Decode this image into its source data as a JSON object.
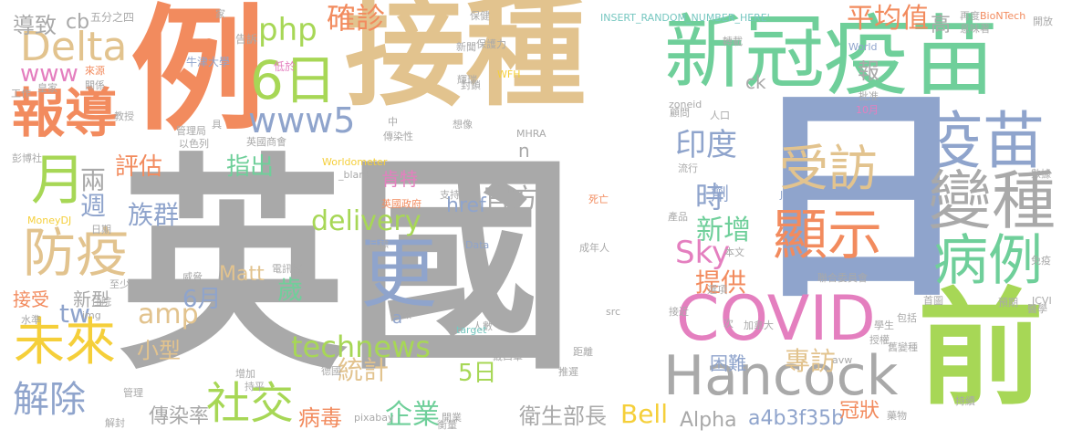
{
  "palette": {
    "red": "#f28b5e",
    "sand": "#e2c38e",
    "green": "#6fcf9a",
    "blue": "#8fa4cc",
    "pink": "#e47fbf",
    "gray": "#a9a9a9",
    "lime": "#a7d756",
    "yellow": "#f5cf3a",
    "teal": "#76c7c0"
  },
  "words": [
    {
      "text": "英國",
      "color": "gray"
    },
    {
      "text": "接種",
      "color": "sand"
    },
    {
      "text": "例",
      "color": "red"
    },
    {
      "text": "日",
      "color": "blue"
    },
    {
      "text": "新冠",
      "color": "green"
    },
    {
      "text": "疫苗",
      "color": "green"
    },
    {
      "text": "前",
      "color": "lime"
    },
    {
      "text": "Hancock",
      "color": "gray"
    },
    {
      "text": "COVID",
      "color": "pink"
    },
    {
      "text": "疫苗",
      "color": "blue"
    },
    {
      "text": "變種",
      "color": "gray"
    },
    {
      "text": "病例",
      "color": "green"
    },
    {
      "text": "顯示",
      "color": "red"
    },
    {
      "text": "受訪",
      "color": "sand"
    },
    {
      "text": "報導",
      "color": "red"
    },
    {
      "text": "防疫",
      "color": "sand"
    },
    {
      "text": "未來",
      "color": "yellow"
    },
    {
      "text": "更",
      "color": "blue"
    },
    {
      "text": "6日",
      "color": "lime"
    },
    {
      "text": "Delta",
      "color": "sand"
    },
    {
      "text": "月",
      "color": "lime"
    },
    {
      "text": "解除",
      "color": "blue"
    },
    {
      "text": "社交",
      "color": "lime"
    },
    {
      "text": "Sky",
      "color": "pink"
    },
    {
      "text": "www5",
      "color": "blue"
    },
    {
      "text": "印度",
      "color": "blue"
    },
    {
      "text": "php",
      "color": "lime"
    },
    {
      "text": "確診",
      "color": "red"
    },
    {
      "text": "www",
      "color": "pink"
    },
    {
      "text": "technews",
      "color": "lime"
    },
    {
      "text": "delivery",
      "color": "lime"
    },
    {
      "text": "amp",
      "color": "sand"
    },
    {
      "text": "族群",
      "color": "blue"
    },
    {
      "text": "評估",
      "color": "red"
    },
    {
      "text": "指出",
      "color": "green"
    },
    {
      "text": "平均值",
      "color": "red"
    },
    {
      "text": "時",
      "color": "blue"
    },
    {
      "text": "新增",
      "color": "green"
    },
    {
      "text": "官方",
      "color": "gray"
    },
    {
      "text": "提供",
      "color": "red"
    },
    {
      "text": "歲",
      "color": "green"
    },
    {
      "text": "6月",
      "color": "blue"
    },
    {
      "text": "統計",
      "color": "sand"
    },
    {
      "text": "專訪",
      "color": "sand"
    },
    {
      "text": "企業",
      "color": "green"
    },
    {
      "text": "病毒",
      "color": "red"
    },
    {
      "text": "傳染率",
      "color": "gray"
    },
    {
      "text": "衛生部長",
      "color": "gray"
    },
    {
      "text": "Bell",
      "color": "yellow"
    },
    {
      "text": "Alpha",
      "color": "gray"
    },
    {
      "text": "a4b3f35b",
      "color": "blue"
    },
    {
      "text": "冠狀",
      "color": "red"
    },
    {
      "text": "tw",
      "color": "blue"
    },
    {
      "text": "接受",
      "color": "red"
    },
    {
      "text": "新型",
      "color": "gray"
    },
    {
      "text": "小型",
      "color": "sand"
    },
    {
      "text": "5日",
      "color": "lime"
    },
    {
      "text": "Matt",
      "color": "sand"
    },
    {
      "text": "href",
      "color": "blue"
    },
    {
      "text": "肯特",
      "color": "pink"
    },
    {
      "text": "困難",
      "color": "blue"
    },
    {
      "text": "兩",
      "color": "gray"
    },
    {
      "text": "週",
      "color": "blue"
    },
    {
      "text": "報",
      "color": "gray"
    },
    {
      "text": "劑",
      "color": "blue"
    },
    {
      "text": "導致",
      "color": "gray"
    },
    {
      "text": "cb",
      "color": "gray"
    },
    {
      "text": "高",
      "color": "gray"
    },
    {
      "text": "ck",
      "color": "gray"
    },
    {
      "text": "n",
      "color": "gray"
    },
    {
      "text": "a",
      "color": "blue"
    },
    {
      "text": "五分之四",
      "color": "gray"
    },
    {
      "text": "牛津大學",
      "color": "blue"
    },
    {
      "text": "告訴",
      "color": "gray"
    },
    {
      "text": "低於",
      "color": "pink"
    },
    {
      "text": "INSERT_RANDOM_NUMBER_HERE'",
      "color": "teal"
    },
    {
      "text": "保健",
      "color": "gray"
    },
    {
      "text": "保護力",
      "color": "gray"
    },
    {
      "text": "再度",
      "color": "gray"
    },
    {
      "text": "意味著",
      "color": "gray"
    },
    {
      "text": "BioNTech",
      "color": "red"
    },
    {
      "text": "開放",
      "color": "gray"
    },
    {
      "text": "轉載",
      "color": "gray"
    },
    {
      "text": "World",
      "color": "blue"
    },
    {
      "text": "來源",
      "color": "red"
    },
    {
      "text": "關係",
      "color": "gray"
    },
    {
      "text": "工作",
      "color": "gray"
    },
    {
      "text": "皇家",
      "color": "gray"
    },
    {
      "text": "新聞",
      "color": "gray"
    },
    {
      "text": "WFH",
      "color": "yellow"
    },
    {
      "text": "封鎖",
      "color": "gray"
    },
    {
      "text": "輝瑞",
      "color": "gray"
    },
    {
      "text": "教授",
      "color": "gray"
    },
    {
      "text": "管理局",
      "color": "gray"
    },
    {
      "text": "以色列",
      "color": "gray"
    },
    {
      "text": "具",
      "color": "gray"
    },
    {
      "text": "英國商會",
      "color": "gray"
    },
    {
      "text": "zoneid",
      "color": "gray"
    },
    {
      "text": "人口",
      "color": "gray"
    },
    {
      "text": "顧問",
      "color": "gray"
    },
    {
      "text": "批准",
      "color": "gray"
    },
    {
      "text": "10月",
      "color": "pink"
    },
    {
      "text": "想像",
      "color": "gray"
    },
    {
      "text": "MHRA",
      "color": "gray"
    },
    {
      "text": "傳染性",
      "color": "gray"
    },
    {
      "text": "中",
      "color": "gray"
    },
    {
      "text": "彭博社",
      "color": "gray"
    },
    {
      "text": "Worldometer",
      "color": "yellow"
    },
    {
      "text": "_blank",
      "color": "gray"
    },
    {
      "text": "英國政府",
      "color": "red"
    },
    {
      "text": "支持",
      "color": "gray"
    },
    {
      "text": "死亡",
      "color": "red"
    },
    {
      "text": "流行",
      "color": "gray"
    },
    {
      "text": "John",
      "color": "blue"
    },
    {
      "text": "數據",
      "color": "gray"
    },
    {
      "text": "產品",
      "color": "gray"
    },
    {
      "text": "本文",
      "color": "gray"
    },
    {
      "text": "免疫",
      "color": "gray"
    },
    {
      "text": "聯合委員會",
      "color": "gray"
    },
    {
      "text": "選項",
      "color": "gray"
    },
    {
      "text": "MoneyDJ",
      "color": "yellow"
    },
    {
      "text": "日期",
      "color": "gray"
    },
    {
      "text": "目標",
      "color": "gray"
    },
    {
      "text": "Data",
      "color": "blue"
    },
    {
      "text": "成年人",
      "color": "gray"
    },
    {
      "text": "威脅",
      "color": "gray"
    },
    {
      "text": "電訊報",
      "color": "gray"
    },
    {
      "text": "至少",
      "color": "gray"
    },
    {
      "text": "img",
      "color": "gray"
    },
    {
      "text": "住院",
      "color": "gray"
    },
    {
      "text": "數",
      "color": "gray"
    },
    {
      "text": "src",
      "color": "gray"
    },
    {
      "text": "人數",
      "color": "gray"
    },
    {
      "text": "水準",
      "color": "gray"
    },
    {
      "text": "target",
      "color": "teal"
    },
    {
      "text": "次",
      "color": "gray"
    },
    {
      "text": "加拿大",
      "color": "gray"
    },
    {
      "text": "醫學",
      "color": "gray"
    },
    {
      "text": "JCVI",
      "color": "gray"
    },
    {
      "text": "預期",
      "color": "gray"
    },
    {
      "text": "首圖",
      "color": "gray"
    },
    {
      "text": "接近",
      "color": "gray"
    },
    {
      "text": "授權",
      "color": "gray"
    },
    {
      "text": "學生",
      "color": "gray"
    },
    {
      "text": "舊變種",
      "color": "gray"
    },
    {
      "text": "包括",
      "color": "gray"
    },
    {
      "text": "avw",
      "color": "gray"
    },
    {
      "text": "戴口罩",
      "color": "gray"
    },
    {
      "text": "推遲",
      "color": "gray"
    },
    {
      "text": "增加",
      "color": "gray"
    },
    {
      "text": "持平",
      "color": "gray"
    },
    {
      "text": "德國",
      "color": "gray"
    },
    {
      "text": "距離",
      "color": "gray"
    },
    {
      "text": "c",
      "color": "gray"
    },
    {
      "text": "管理",
      "color": "gray"
    },
    {
      "text": "解封",
      "color": "gray"
    },
    {
      "text": "pixabay",
      "color": "gray"
    },
    {
      "text": "開業",
      "color": "gray"
    },
    {
      "text": "衡量",
      "color": "gray"
    },
    {
      "text": "藥物",
      "color": "gray"
    },
    {
      "text": "持續",
      "color": "gray"
    },
    {
      "text": "家",
      "color": "gray"
    },
    {
      "text": "說",
      "color": "gray"
    }
  ]
}
